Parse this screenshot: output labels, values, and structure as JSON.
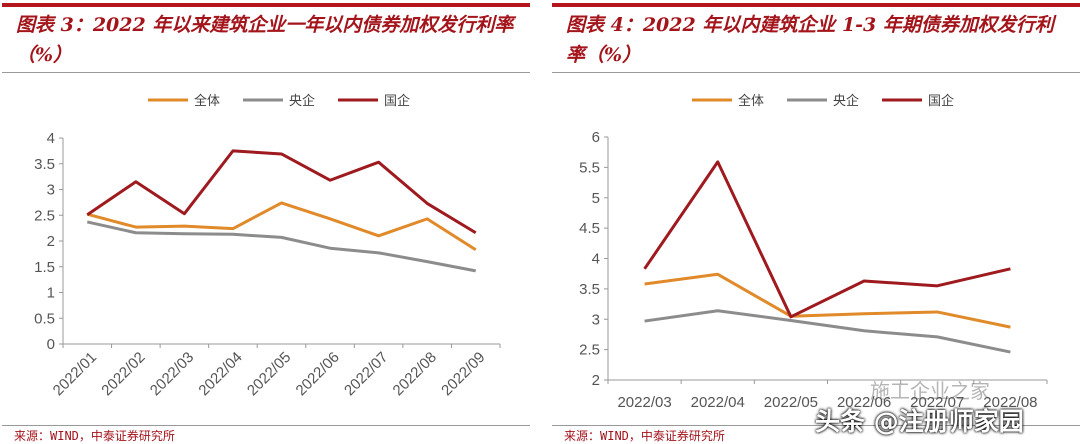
{
  "charts": [
    {
      "title": "图表 3：2022 年以来建筑企业一年以内债券加权发行利率（%）",
      "source": "来源：WIND，中泰证券研究所"
    },
    {
      "title": "图表 4：2022 年以内建筑企业 1-3 年期债券加权发行利率（%）",
      "source": "来源：WIND，中泰证券研究所"
    }
  ],
  "watermark": {
    "text1": "施工企业之家",
    "text2": "头条 @注册师家园"
  },
  "chart_data": [
    {
      "type": "line",
      "title": "图表 3：2022 年以来建筑企业一年以内债券加权发行利率（%）",
      "categories": [
        "2022/01",
        "2022/02",
        "2022/03",
        "2022/04",
        "2022/05",
        "2022/06",
        "2022/07",
        "2022/08",
        "2022/09"
      ],
      "ylim": [
        0,
        4
      ],
      "yticks": [
        "0",
        "0.5",
        "1",
        "1.5",
        "2",
        "2.5",
        "3",
        "3.5",
        "4"
      ],
      "legend": "top",
      "grid": false,
      "series": [
        {
          "name": "全体",
          "color": "#e08a2a",
          "values": [
            2.52,
            2.27,
            2.29,
            2.24,
            2.74,
            2.43,
            2.1,
            2.43,
            1.83
          ]
        },
        {
          "name": "央企",
          "color": "#8c8c8c",
          "values": [
            2.37,
            2.16,
            2.14,
            2.13,
            2.07,
            1.86,
            1.77,
            1.6,
            1.42
          ]
        },
        {
          "name": "国企",
          "color": "#9e1a1f",
          "values": [
            2.51,
            3.15,
            2.53,
            3.75,
            3.69,
            3.18,
            3.53,
            2.73,
            2.16
          ]
        }
      ]
    },
    {
      "type": "line",
      "title": "图表 4：2022 年以内建筑企业 1-3 年期债券加权发行利率（%）",
      "categories": [
        "2022/03",
        "2022/04",
        "2022/05",
        "2022/06",
        "2022/07",
        "2022/08"
      ],
      "ylim": [
        2,
        6
      ],
      "yticks": [
        "2",
        "2.5",
        "3",
        "3.5",
        "4",
        "4.5",
        "5",
        "5.5",
        "6"
      ],
      "legend": "top",
      "grid": false,
      "series": [
        {
          "name": "全体",
          "color": "#e08a2a",
          "values": [
            3.58,
            3.74,
            3.05,
            3.09,
            3.12,
            2.87
          ]
        },
        {
          "name": "央企",
          "color": "#8c8c8c",
          "values": [
            2.97,
            3.14,
            2.98,
            2.81,
            2.71,
            2.46
          ]
        },
        {
          "name": "国企",
          "color": "#9e1a1f",
          "values": [
            3.83,
            5.59,
            3.04,
            3.63,
            3.55,
            3.83
          ]
        }
      ]
    }
  ]
}
